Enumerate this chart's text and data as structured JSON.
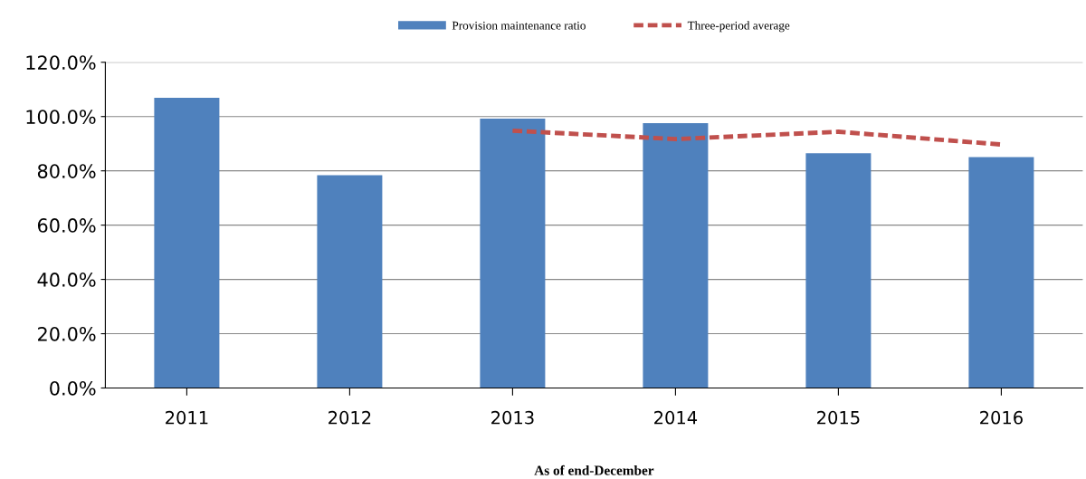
{
  "chart_data": {
    "type": "bar",
    "xlabel": "As of end-December",
    "categories": [
      "2011",
      "2012",
      "2013",
      "2014",
      "2015",
      "2016"
    ],
    "series": [
      {
        "name": "Provision maintenance ratio",
        "type": "bar",
        "color": "#4f81bd",
        "values": [
          106.9,
          78.4,
          99.2,
          97.6,
          86.5,
          85.1
        ]
      },
      {
        "name": "Three-period average",
        "type": "line",
        "color": "#c0504d",
        "line_style": "dashed",
        "values": [
          null,
          null,
          94.8,
          91.7,
          94.4,
          89.7
        ]
      }
    ],
    "ylim": [
      0,
      120
    ],
    "yticks": [
      {
        "value": 0,
        "label": "0.0%"
      },
      {
        "value": 20,
        "label": "20.0%"
      },
      {
        "value": 40,
        "label": "40.0%"
      },
      {
        "value": 60,
        "label": "60.0%"
      },
      {
        "value": 80,
        "label": "80.0%"
      },
      {
        "value": 100,
        "label": "100.0%"
      },
      {
        "value": 120,
        "label": "120.0%"
      }
    ],
    "grid": "y",
    "legend": "top"
  }
}
